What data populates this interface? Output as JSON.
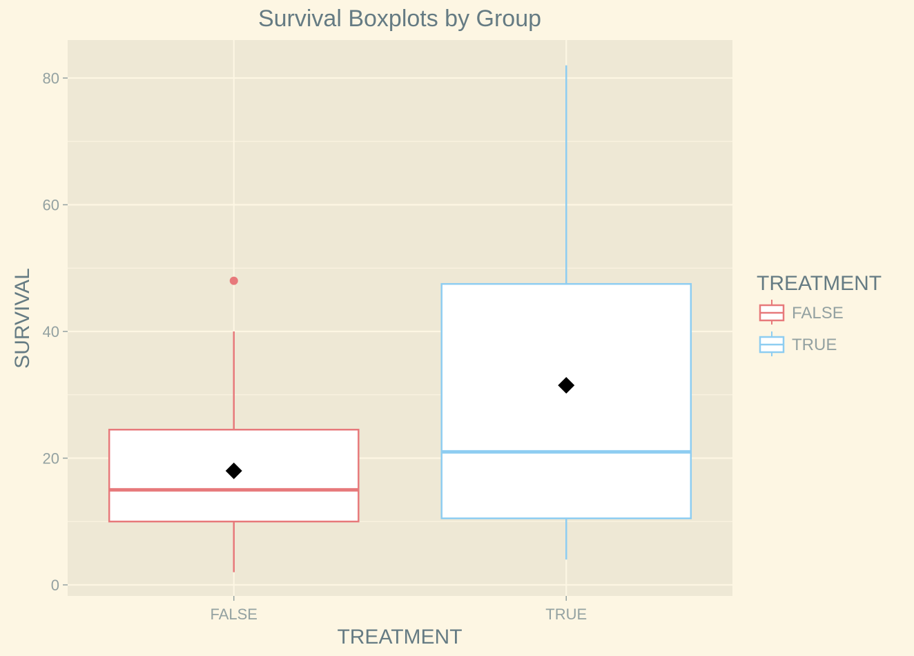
{
  "chart_data": {
    "type": "boxplot",
    "title": "Survival Boxplots by Group",
    "xlabel": "TREATMENT",
    "ylabel": "SURVIVAL",
    "ylim": [
      -2,
      86
    ],
    "yticks": [
      0,
      20,
      40,
      60,
      80
    ],
    "grid": true,
    "legend": {
      "title": "TREATMENT",
      "placement": "right"
    },
    "categories": [
      "FALSE",
      "TRUE"
    ],
    "series": [
      {
        "name": "FALSE",
        "color": "#e7797b",
        "whisker_low": 2,
        "q1": 10,
        "median": 15,
        "q3": 24.5,
        "whisker_high": 40,
        "mean": 18,
        "outliers": [
          48
        ]
      },
      {
        "name": "TRUE",
        "color": "#8ecdf1",
        "whisker_low": 4,
        "q1": 10.5,
        "median": 21,
        "q3": 47.5,
        "whisker_high": 82,
        "mean": 31.5,
        "outliers": []
      }
    ]
  }
}
